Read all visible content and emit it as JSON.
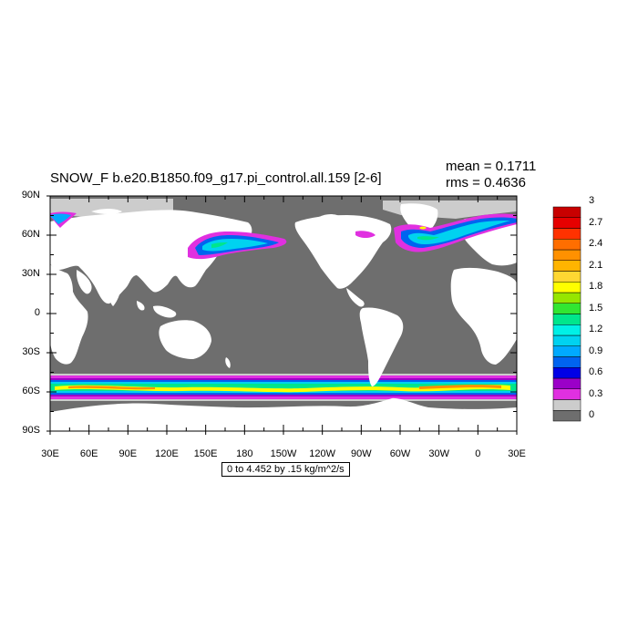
{
  "title": "SNOW_F b.e20.B1850.f09_g17.pi_control.all.159 [2-6]",
  "stats": {
    "mean": "mean = 0.1711",
    "rms": "rms = 0.4636"
  },
  "range_label": "0 to 4.452 by .15 kg/m^2/s",
  "colors": {
    "land": "#ffffff",
    "ocean": "#6e6e6e",
    "frame": "#000000"
  },
  "map_data": {
    "projection": "cylindrical equidistant",
    "lon_range": [
      30,
      390
    ],
    "lat_range": [
      -90,
      90
    ],
    "lat_ticks": [
      {
        "value": 90,
        "label": "90N"
      },
      {
        "value": 60,
        "label": "60N"
      },
      {
        "value": 30,
        "label": "30N"
      },
      {
        "value": 0,
        "label": "0"
      },
      {
        "value": -30,
        "label": "30S"
      },
      {
        "value": -60,
        "label": "60S"
      },
      {
        "value": -90,
        "label": "90S"
      }
    ],
    "lon_ticks": [
      {
        "value": 30,
        "label": "30E"
      },
      {
        "value": 60,
        "label": "60E"
      },
      {
        "value": 90,
        "label": "90E"
      },
      {
        "value": 120,
        "label": "120E"
      },
      {
        "value": 150,
        "label": "150E"
      },
      {
        "value": 180,
        "label": "180"
      },
      {
        "value": 210,
        "label": "150W"
      },
      {
        "value": 240,
        "label": "120W"
      },
      {
        "value": 270,
        "label": "90W"
      },
      {
        "value": 300,
        "label": "60W"
      },
      {
        "value": 330,
        "label": "30W"
      },
      {
        "value": 360,
        "label": "0"
      },
      {
        "value": 390,
        "label": "30E"
      }
    ]
  },
  "colorbar": {
    "colors": [
      "#6e6e6e",
      "#cccccc",
      "#e030e0",
      "#9b00c8",
      "#0000e6",
      "#0064f0",
      "#00aaff",
      "#00d2f0",
      "#00f0e6",
      "#00e68c",
      "#32e632",
      "#96e600",
      "#ffff00",
      "#ffd732",
      "#ffb400",
      "#ff9100",
      "#ff6e00",
      "#ff3200",
      "#e60000",
      "#c80000"
    ],
    "labels": [
      "0",
      "0.3",
      "0.6",
      "0.9",
      "1.2",
      "1.5",
      "1.8",
      "2.1",
      "2.4",
      "2.7",
      "3"
    ]
  }
}
